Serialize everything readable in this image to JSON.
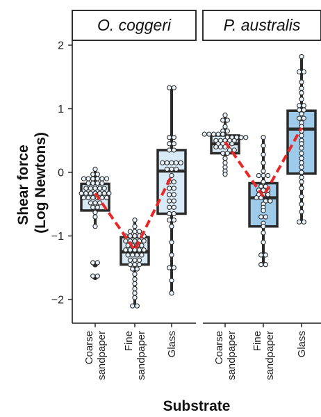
{
  "chart_data": {
    "type": "box",
    "facets": [
      "O. coggeri",
      "P. australis"
    ],
    "categories": [
      [
        "Coarse",
        "sandpaper"
      ],
      [
        "Fine",
        "sandpaper"
      ],
      [
        "Glass"
      ]
    ],
    "xlabel": "Substrate",
    "ylabel": [
      "Shear force",
      "(Log Newtons)"
    ],
    "ylim": [
      -2.45,
      2.05
    ],
    "yticks": [
      2,
      1,
      0,
      -1,
      -2
    ],
    "ytick_labels": [
      "2",
      "1",
      "0",
      "−1",
      "−2"
    ],
    "mean_line": {
      "style": "dashed",
      "color": "#e82727"
    },
    "groups": [
      {
        "facet": "O. coggeri",
        "substrate": "Coarse sandpaper",
        "fill": "#d8eaf6",
        "box": {
          "min": -0.85,
          "q1": -0.6,
          "median": -0.33,
          "q3": -0.18,
          "max": 0.05
        },
        "outliers": [
          -1.45,
          -1.65
        ],
        "mean": -0.33,
        "points": [
          0.05,
          -0.03,
          -0.03,
          -0.1,
          -0.1,
          -0.1,
          -0.1,
          -0.1,
          -0.1,
          -0.17,
          -0.17,
          -0.17,
          -0.17,
          -0.25,
          -0.25,
          -0.25,
          -0.25,
          -0.25,
          -0.33,
          -0.33,
          -0.33,
          -0.33,
          -0.33,
          -0.33,
          -0.33,
          -0.4,
          -0.4,
          -0.4,
          -0.4,
          -0.4,
          -0.4,
          -0.48,
          -0.48,
          -0.48,
          -0.55,
          -0.55,
          -0.63,
          -0.7,
          -0.85,
          -1.42,
          -1.42,
          -1.63,
          -1.63
        ]
      },
      {
        "facet": "O. coggeri",
        "substrate": "Fine sandpaper",
        "fill": "#d8eaf6",
        "box": {
          "min": -2.1,
          "q1": -1.45,
          "median": -1.25,
          "q3": -1.02,
          "max": -0.75
        },
        "outliers": [],
        "mean": -1.22,
        "points": [
          -0.75,
          -0.85,
          -0.93,
          -0.93,
          -0.93,
          -1.0,
          -1.0,
          -1.0,
          -1.0,
          -1.0,
          -1.08,
          -1.08,
          -1.08,
          -1.08,
          -1.08,
          -1.15,
          -1.15,
          -1.15,
          -1.15,
          -1.22,
          -1.22,
          -1.22,
          -1.22,
          -1.22,
          -1.3,
          -1.3,
          -1.3,
          -1.3,
          -1.38,
          -1.38,
          -1.38,
          -1.45,
          -1.45,
          -1.45,
          -1.52,
          -1.52,
          -1.6,
          -1.68,
          -1.75,
          -1.83,
          -1.9,
          -1.97,
          -2.1,
          -2.1
        ]
      },
      {
        "facet": "O. coggeri",
        "substrate": "Glass",
        "fill": "#d8eaf6",
        "box": {
          "min": -1.9,
          "q1": -0.65,
          "median": 0.02,
          "q3": 0.35,
          "max": 1.35
        },
        "outliers": [],
        "mean": -0.05,
        "points": [
          1.33,
          1.33,
          0.55,
          0.55,
          0.45,
          0.45,
          0.35,
          0.35,
          0.15,
          0.15,
          0.15,
          0.15,
          0.15,
          0.05,
          0.05,
          0.05,
          -0.05,
          -0.15,
          -0.15,
          -0.25,
          -0.25,
          -0.35,
          -0.35,
          -0.45,
          -0.45,
          -0.55,
          -0.55,
          -0.65,
          -0.65,
          -0.75,
          -0.75,
          -0.85,
          -1.1,
          -1.3,
          -1.5,
          -1.5,
          -1.7,
          -1.9
        ]
      },
      {
        "facet": "P. australis",
        "substrate": "Coarse sandpaper",
        "fill": "#d8eaf6",
        "box": {
          "min": -0.03,
          "q1": 0.3,
          "median": 0.45,
          "q3": 0.58,
          "max": 0.9
        },
        "outliers": [],
        "mean": 0.48,
        "points": [
          0.9,
          0.82,
          0.82,
          0.72,
          0.65,
          0.65,
          0.6,
          0.6,
          0.6,
          0.6,
          0.6,
          0.55,
          0.55,
          0.55,
          0.55,
          0.55,
          0.5,
          0.5,
          0.5,
          0.5,
          0.5,
          0.45,
          0.45,
          0.45,
          0.45,
          0.4,
          0.4,
          0.4,
          0.35,
          0.35,
          0.3,
          0.3,
          0.22,
          0.15,
          0.08,
          0.02,
          -0.03
        ]
      },
      {
        "facet": "P. australis",
        "substrate": "Fine sandpaper",
        "fill": "#9fcbea",
        "box": {
          "min": -1.45,
          "q1": -0.85,
          "median": -0.4,
          "q3": -0.17,
          "max": 0.55
        },
        "outliers": [],
        "mean": -0.38,
        "points": [
          0.55,
          0.42,
          0.28,
          0.15,
          0.02,
          -0.05,
          -0.05,
          -0.05,
          -0.15,
          -0.22,
          -0.22,
          -0.28,
          -0.28,
          -0.28,
          -0.35,
          -0.35,
          -0.35,
          -0.4,
          -0.4,
          -0.45,
          -0.45,
          -0.5,
          -0.55,
          -0.6,
          -0.7,
          -0.7,
          -0.8,
          -0.85,
          -0.95,
          -1.1,
          -1.3,
          -1.3,
          -1.45,
          -1.45
        ]
      },
      {
        "facet": "P. australis",
        "substrate": "Glass",
        "fill": "#9fcbea",
        "box": {
          "min": -0.78,
          "q1": -0.02,
          "median": 0.68,
          "q3": 0.97,
          "max": 1.82
        },
        "outliers": [],
        "mean": 0.7,
        "points": [
          1.82,
          1.58,
          1.58,
          1.42,
          1.32,
          1.25,
          1.15,
          1.05,
          1.05,
          0.98,
          0.98,
          0.92,
          0.85,
          0.85,
          0.78,
          0.72,
          0.65,
          0.58,
          0.5,
          0.45,
          0.38,
          0.3,
          0.22,
          0.15,
          0.08,
          0.0,
          -0.08,
          -0.15,
          -0.25,
          -0.38,
          -0.5,
          -0.62,
          -0.78,
          -0.78
        ]
      }
    ]
  }
}
